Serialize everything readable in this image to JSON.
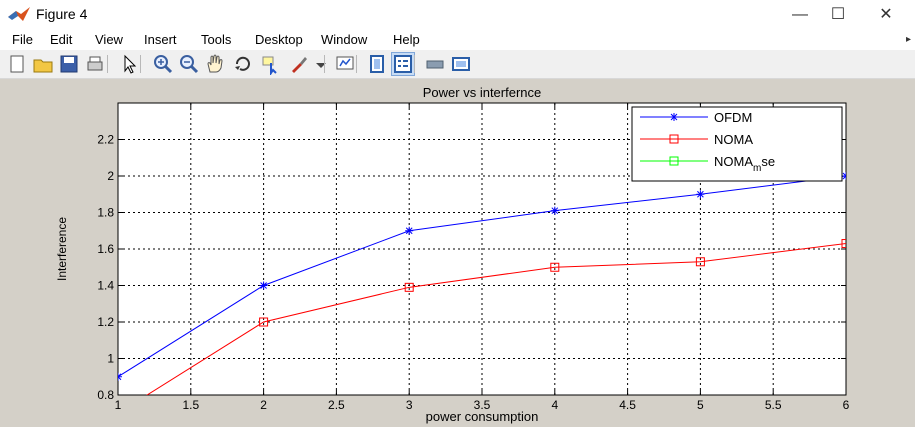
{
  "window": {
    "title": "Figure 4",
    "controls": {
      "minimize": "—",
      "maximize": "☐",
      "close": "✕"
    }
  },
  "menu": [
    "File",
    "Edit",
    "View",
    "Insert",
    "Tools",
    "Desktop",
    "Window",
    "Help"
  ],
  "toolbar": [
    {
      "name": "new-figure-icon",
      "glyph": "new"
    },
    {
      "name": "open-file-icon",
      "glyph": "open"
    },
    {
      "name": "save-icon",
      "glyph": "save"
    },
    {
      "name": "print-icon",
      "glyph": "print"
    },
    {
      "name": "arrow-select-icon",
      "glyph": "arrow"
    },
    {
      "name": "zoom-in-icon",
      "glyph": "zoomin"
    },
    {
      "name": "zoom-out-icon",
      "glyph": "zoomout"
    },
    {
      "name": "pan-hand-icon",
      "glyph": "pan"
    },
    {
      "name": "rotate-3d-icon",
      "glyph": "rotate"
    },
    {
      "name": "data-cursor-icon",
      "glyph": "cursor"
    },
    {
      "name": "brush-icon",
      "glyph": "brush"
    },
    {
      "name": "brush-dropdown-icon",
      "glyph": "dropdown"
    },
    {
      "name": "link-plot-icon",
      "glyph": "link"
    },
    {
      "name": "insert-colorbar-icon",
      "glyph": "colorbar"
    },
    {
      "name": "insert-legend-icon",
      "glyph": "legend"
    },
    {
      "name": "hide-plot-tools-icon",
      "glyph": "hide"
    },
    {
      "name": "show-plot-tools-icon",
      "glyph": "show"
    }
  ],
  "chart_data": {
    "type": "line",
    "title": "Power vs interfernce",
    "xlabel": "power consumption",
    "ylabel": "Interference",
    "xlim": [
      1,
      6
    ],
    "ylim": [
      0.8,
      2.4
    ],
    "xticks": [
      "1",
      "1.5",
      "2",
      "2.5",
      "3",
      "3.5",
      "4",
      "4.5",
      "5",
      "5.5",
      "6"
    ],
    "yticks": [
      "0.8",
      "1",
      "1.2",
      "1.4",
      "1.6",
      "1.8",
      "2",
      "2.2"
    ],
    "grid": true,
    "legend_position": "top-right",
    "series": [
      {
        "name": "OFDM",
        "color": "#0000ff",
        "marker": "star",
        "x": [
          1,
          2,
          3,
          4,
          5,
          6
        ],
        "y": [
          0.9,
          1.4,
          1.7,
          1.81,
          1.9,
          2.0
        ]
      },
      {
        "name": "NOMA",
        "color": "#ff0000",
        "marker": "square",
        "x": [
          1,
          2,
          3,
          4,
          5,
          6
        ],
        "y": [
          0.7,
          1.2,
          1.39,
          1.5,
          1.53,
          1.63
        ]
      },
      {
        "name": "NOMA",
        "name_sub": "m",
        "name_suffix": "se",
        "color": "#00ff00",
        "marker": "square",
        "x": [],
        "y": []
      }
    ]
  }
}
